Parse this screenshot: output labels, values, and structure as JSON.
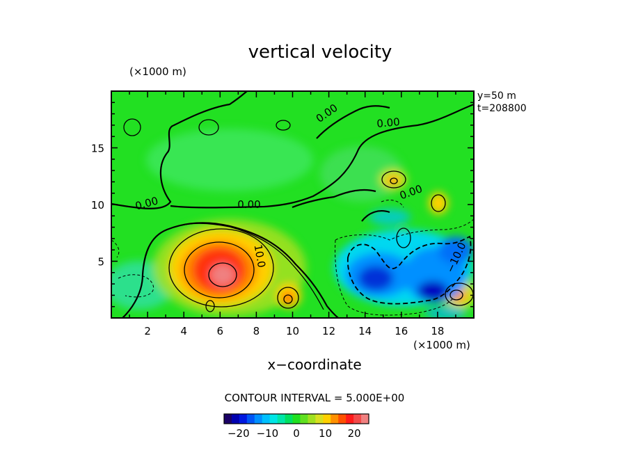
{
  "chart_data": {
    "type": "heatmap",
    "title": "vertical velocity",
    "xlabel": "x−coordinate",
    "x_unit_label": "(×1000 m)",
    "y_unit_label": "(×1000 m)",
    "xlim": [
      0,
      20
    ],
    "ylim": [
      0,
      20
    ],
    "x_ticks": [
      2,
      4,
      6,
      8,
      10,
      12,
      14,
      16,
      18
    ],
    "y_ticks": [
      5,
      10,
      15
    ],
    "annotations": [
      "y=50  m",
      "t=208800"
    ],
    "contour_interval_text": "CONTOUR INTERVAL = 5.000E+00",
    "contour_labels": [
      {
        "text": "0.00",
        "x": 2.0,
        "y": 9.8,
        "angle": -15
      },
      {
        "text": "0.00",
        "x": 7.6,
        "y": 9.7,
        "angle": 0
      },
      {
        "text": "0.00",
        "x": 12.0,
        "y": 17.8,
        "angle": -35
      },
      {
        "text": "0.00",
        "x": 15.3,
        "y": 16.9,
        "angle": -5
      },
      {
        "text": "0.00",
        "x": 16.6,
        "y": 10.8,
        "angle": -20
      },
      {
        "text": "10.0",
        "x": 8.0,
        "y": 5.4,
        "angle": 80
      },
      {
        "text": "−10.0",
        "x": 19.2,
        "y": 5.2,
        "angle": -65
      }
    ],
    "features": [
      {
        "type": "updraft",
        "x": 6.2,
        "y": 4.0,
        "max": 25
      },
      {
        "type": "updraft",
        "x": 9.8,
        "y": 1.7,
        "max": 12
      },
      {
        "type": "updraft",
        "x": 19.0,
        "y": 2.0,
        "max": 12
      },
      {
        "type": "updraft",
        "x": 15.6,
        "y": 12.2,
        "max": 10
      },
      {
        "type": "updraft",
        "x": 18.1,
        "y": 10.2,
        "max": 10
      },
      {
        "type": "updraft",
        "x": 16.0,
        "y": 7.2,
        "max": 7
      },
      {
        "type": "downdraft",
        "x": 14.8,
        "y": 3.5,
        "min": -17
      },
      {
        "type": "downdraft",
        "x": 17.6,
        "y": 2.8,
        "min": -20
      },
      {
        "type": "downdraft",
        "x": 18.8,
        "y": 6.5,
        "min": -14
      }
    ],
    "colorbar": {
      "ticks": [
        "−20",
        "−10",
        "0",
        "10",
        "20"
      ],
      "tick_values": [
        -20,
        -10,
        0,
        10,
        20
      ],
      "range": [
        -25,
        25
      ],
      "colors": [
        "#1a0066",
        "#0000b0",
        "#0018e0",
        "#0055f5",
        "#0090ff",
        "#00c0ff",
        "#00e6e6",
        "#00e6a8",
        "#00e060",
        "#20e020",
        "#60e020",
        "#a0e020",
        "#d8e020",
        "#ffd000",
        "#ff9000",
        "#ff5000",
        "#ff1a1a",
        "#f24a4a",
        "#f08080"
      ]
    }
  }
}
